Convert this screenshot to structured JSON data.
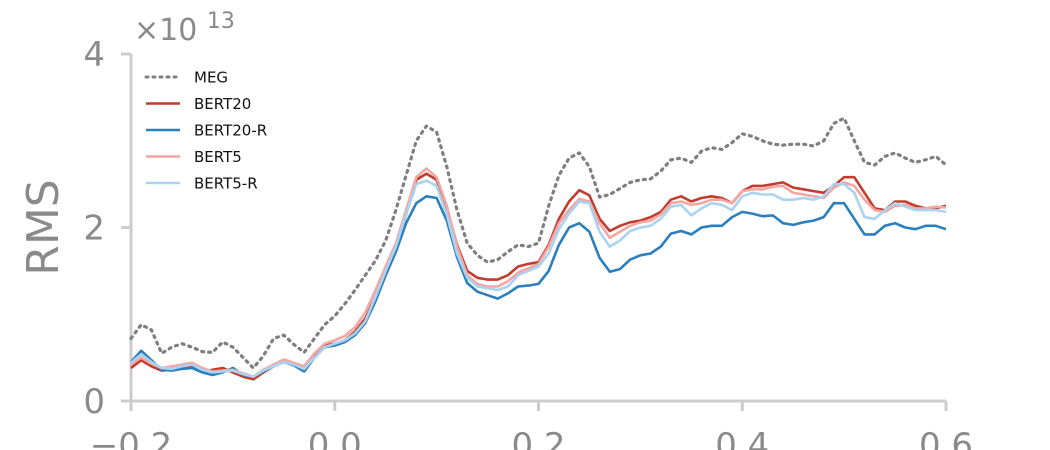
{
  "chart_data": {
    "type": "line",
    "title": "",
    "xlabel": "",
    "ylabel": "RMS",
    "y_offset_label": "×10",
    "y_offset_exponent": "13",
    "xlim": [
      -0.2,
      0.6
    ],
    "ylim": [
      0,
      4
    ],
    "xticks": [
      -0.2,
      0.0,
      0.2,
      0.4,
      0.6
    ],
    "xtick_labels": [
      "−0.2",
      "0.0",
      "0.2",
      "0.4",
      "0.6"
    ],
    "yticks": [
      0,
      2,
      4
    ],
    "ytick_labels": [
      "0",
      "2",
      "4"
    ],
    "grid": false,
    "legend_position": "top-left",
    "x": [
      -0.2,
      -0.19,
      -0.18,
      -0.17,
      -0.16,
      -0.15,
      -0.14,
      -0.13,
      -0.12,
      -0.11,
      -0.1,
      -0.09,
      -0.08,
      -0.07,
      -0.06,
      -0.05,
      -0.04,
      -0.03,
      -0.02,
      -0.01,
      0.0,
      0.01,
      0.02,
      0.03,
      0.04,
      0.05,
      0.06,
      0.07,
      0.08,
      0.09,
      0.1,
      0.11,
      0.12,
      0.13,
      0.14,
      0.15,
      0.16,
      0.17,
      0.18,
      0.19,
      0.2,
      0.21,
      0.22,
      0.23,
      0.24,
      0.25,
      0.26,
      0.27,
      0.28,
      0.29,
      0.3,
      0.31,
      0.32,
      0.33,
      0.34,
      0.35,
      0.36,
      0.37,
      0.38,
      0.39,
      0.4,
      0.41,
      0.42,
      0.43,
      0.44,
      0.45,
      0.46,
      0.47,
      0.48,
      0.49,
      0.5,
      0.51,
      0.52,
      0.53,
      0.54,
      0.55,
      0.56,
      0.57,
      0.58,
      0.59,
      0.6
    ],
    "series": [
      {
        "name": "MEG",
        "color": "#7f7f7f",
        "style": "dotted",
        "values": [
          0.72,
          0.88,
          0.82,
          0.55,
          0.62,
          0.66,
          0.62,
          0.57,
          0.56,
          0.68,
          0.62,
          0.5,
          0.38,
          0.52,
          0.72,
          0.76,
          0.65,
          0.56,
          0.72,
          0.88,
          0.98,
          1.12,
          1.28,
          1.45,
          1.62,
          1.85,
          2.2,
          2.6,
          3.0,
          3.17,
          3.1,
          2.7,
          2.2,
          1.82,
          1.68,
          1.6,
          1.63,
          1.72,
          1.8,
          1.78,
          1.82,
          2.25,
          2.6,
          2.8,
          2.86,
          2.7,
          2.35,
          2.38,
          2.45,
          2.52,
          2.55,
          2.56,
          2.65,
          2.78,
          2.8,
          2.75,
          2.88,
          2.92,
          2.9,
          2.98,
          3.08,
          3.05,
          3.0,
          2.96,
          2.95,
          2.96,
          2.96,
          2.94,
          3.0,
          3.2,
          3.26,
          3.0,
          2.75,
          2.72,
          2.82,
          2.86,
          2.8,
          2.75,
          2.78,
          2.82,
          2.72
        ]
      },
      {
        "name": "BERT20",
        "color": "#c23b2d",
        "style": "solid",
        "values": [
          0.38,
          0.47,
          0.4,
          0.35,
          0.36,
          0.4,
          0.39,
          0.34,
          0.36,
          0.38,
          0.33,
          0.28,
          0.25,
          0.33,
          0.4,
          0.47,
          0.43,
          0.37,
          0.52,
          0.64,
          0.66,
          0.7,
          0.8,
          0.95,
          1.2,
          1.45,
          1.75,
          2.15,
          2.55,
          2.62,
          2.55,
          2.22,
          1.8,
          1.5,
          1.42,
          1.4,
          1.4,
          1.45,
          1.55,
          1.58,
          1.6,
          1.8,
          2.1,
          2.3,
          2.43,
          2.37,
          2.1,
          1.96,
          2.02,
          2.06,
          2.08,
          2.12,
          2.18,
          2.32,
          2.36,
          2.3,
          2.34,
          2.36,
          2.34,
          2.28,
          2.42,
          2.48,
          2.48,
          2.5,
          2.52,
          2.46,
          2.44,
          2.42,
          2.4,
          2.48,
          2.58,
          2.58,
          2.4,
          2.22,
          2.2,
          2.3,
          2.3,
          2.25,
          2.22,
          2.22,
          2.25
        ]
      },
      {
        "name": "BERT20-R",
        "color": "#2b7fbd",
        "style": "solid",
        "values": [
          0.45,
          0.58,
          0.47,
          0.36,
          0.35,
          0.37,
          0.38,
          0.33,
          0.3,
          0.33,
          0.38,
          0.3,
          0.28,
          0.34,
          0.4,
          0.45,
          0.41,
          0.34,
          0.5,
          0.62,
          0.64,
          0.68,
          0.76,
          0.9,
          1.15,
          1.45,
          1.72,
          2.05,
          2.28,
          2.36,
          2.34,
          2.08,
          1.66,
          1.36,
          1.26,
          1.22,
          1.18,
          1.24,
          1.32,
          1.33,
          1.35,
          1.5,
          1.8,
          2.0,
          2.05,
          1.95,
          1.65,
          1.49,
          1.52,
          1.63,
          1.68,
          1.7,
          1.78,
          1.93,
          1.96,
          1.92,
          2.0,
          2.02,
          2.02,
          2.12,
          2.18,
          2.16,
          2.13,
          2.14,
          2.05,
          2.03,
          2.06,
          2.08,
          2.12,
          2.28,
          2.28,
          2.1,
          1.92,
          1.92,
          2.02,
          2.05,
          2.0,
          1.98,
          2.02,
          2.02,
          1.98
        ]
      },
      {
        "name": "BERT5",
        "color": "#f4a6a2",
        "style": "solid",
        "values": [
          0.42,
          0.5,
          0.43,
          0.38,
          0.4,
          0.42,
          0.44,
          0.38,
          0.34,
          0.35,
          0.36,
          0.32,
          0.28,
          0.36,
          0.42,
          0.48,
          0.44,
          0.4,
          0.55,
          0.66,
          0.7,
          0.75,
          0.85,
          1.02,
          1.28,
          1.55,
          1.82,
          2.2,
          2.58,
          2.68,
          2.58,
          2.25,
          1.78,
          1.45,
          1.35,
          1.32,
          1.32,
          1.38,
          1.48,
          1.53,
          1.58,
          1.78,
          2.05,
          2.2,
          2.33,
          2.3,
          2.05,
          1.88,
          1.95,
          2.02,
          2.06,
          2.08,
          2.15,
          2.28,
          2.3,
          2.26,
          2.28,
          2.32,
          2.32,
          2.28,
          2.42,
          2.44,
          2.44,
          2.47,
          2.48,
          2.4,
          2.38,
          2.36,
          2.34,
          2.46,
          2.52,
          2.48,
          2.32,
          2.2,
          2.18,
          2.25,
          2.26,
          2.22,
          2.22,
          2.24,
          2.23
        ]
      },
      {
        "name": "BERT5-R",
        "color": "#a9d3f0",
        "style": "solid",
        "values": [
          0.44,
          0.54,
          0.45,
          0.38,
          0.37,
          0.4,
          0.42,
          0.36,
          0.33,
          0.34,
          0.35,
          0.31,
          0.28,
          0.35,
          0.4,
          0.45,
          0.42,
          0.37,
          0.5,
          0.62,
          0.66,
          0.7,
          0.78,
          0.92,
          1.2,
          1.5,
          1.78,
          2.15,
          2.5,
          2.54,
          2.48,
          2.15,
          1.7,
          1.42,
          1.32,
          1.3,
          1.28,
          1.32,
          1.45,
          1.5,
          1.55,
          1.7,
          1.98,
          2.16,
          2.3,
          2.28,
          1.95,
          1.78,
          1.85,
          1.96,
          2.0,
          2.02,
          2.1,
          2.24,
          2.26,
          2.14,
          2.22,
          2.28,
          2.26,
          2.2,
          2.36,
          2.4,
          2.38,
          2.38,
          2.32,
          2.32,
          2.34,
          2.32,
          2.36,
          2.5,
          2.5,
          2.4,
          2.12,
          2.1,
          2.2,
          2.28,
          2.24,
          2.2,
          2.2,
          2.2,
          2.18
        ]
      }
    ]
  }
}
